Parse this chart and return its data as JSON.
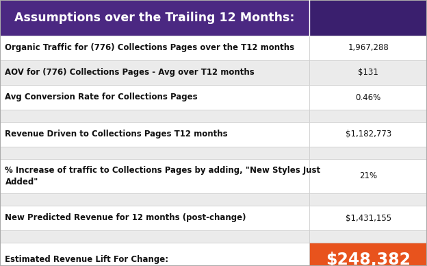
{
  "title": "Assumptions over the Trailing 12 Months:",
  "title_bg": "#4B2882",
  "title_color": "#FFFFFF",
  "col_split": 0.725,
  "rows": [
    {
      "label": "Organic Traffic for (776) Collections Pages over the T12 months",
      "value": "1,967,288",
      "bold_label": true,
      "bold_value": false,
      "bg": "#FFFFFF",
      "value_bg": "#FFFFFF",
      "spacer": false,
      "large_value": false,
      "multiline": false
    },
    {
      "label": "AOV for (776) Collections Pages - Avg over T12 months",
      "value": "$131",
      "bold_label": true,
      "bold_value": false,
      "bg": "#EBEBEB",
      "value_bg": "#EBEBEB",
      "spacer": false,
      "large_value": false,
      "multiline": false
    },
    {
      "label": "Avg Conversion Rate for Collections Pages",
      "value": "0.46%",
      "bold_label": true,
      "bold_value": false,
      "bg": "#FFFFFF",
      "value_bg": "#FFFFFF",
      "spacer": false,
      "large_value": false,
      "multiline": false
    },
    {
      "label": "",
      "value": "",
      "bold_label": false,
      "bold_value": false,
      "bg": "#EBEBEB",
      "value_bg": "#EBEBEB",
      "spacer": true,
      "large_value": false,
      "multiline": false
    },
    {
      "label": "Revenue Driven to Collections Pages T12 months",
      "value": "$1,182,773",
      "bold_label": true,
      "bold_value": false,
      "bg": "#FFFFFF",
      "value_bg": "#FFFFFF",
      "spacer": false,
      "large_value": false,
      "multiline": false
    },
    {
      "label": "",
      "value": "",
      "bold_label": false,
      "bold_value": false,
      "bg": "#EBEBEB",
      "value_bg": "#EBEBEB",
      "spacer": true,
      "large_value": false,
      "multiline": false
    },
    {
      "label": "% Increase of traffic to Collections Pages by adding, \"New Styles Just\nAdded\"",
      "value": "21%",
      "bold_label": true,
      "bold_value": false,
      "bg": "#FFFFFF",
      "value_bg": "#FFFFFF",
      "spacer": false,
      "large_value": false,
      "multiline": true
    },
    {
      "label": "",
      "value": "",
      "bold_label": false,
      "bold_value": false,
      "bg": "#EBEBEB",
      "value_bg": "#EBEBEB",
      "spacer": true,
      "large_value": false,
      "multiline": false
    },
    {
      "label": "New Predicted Revenue for 12 months (post-change)",
      "value": "$1,431,155",
      "bold_label": true,
      "bold_value": false,
      "bg": "#FFFFFF",
      "value_bg": "#FFFFFF",
      "spacer": false,
      "large_value": false,
      "multiline": false
    },
    {
      "label": "",
      "value": "",
      "bold_label": false,
      "bold_value": false,
      "bg": "#EBEBEB",
      "value_bg": "#EBEBEB",
      "spacer": true,
      "large_value": false,
      "multiline": false
    },
    {
      "label": "Estimated Revenue Lift For Change:",
      "value": "$248,382",
      "bold_label": true,
      "bold_value": true,
      "bg": "#FFFFFF",
      "value_bg": "#E8531D",
      "spacer": false,
      "large_value": true,
      "multiline": false
    }
  ],
  "title_fontsize": 12.5,
  "label_fontsize": 8.5,
  "value_fontsize": 8.5,
  "large_value_fontsize": 17,
  "border_color": "#CCCCCC",
  "outer_border_color": "#AAAAAA",
  "fig_width": 6.24,
  "fig_height": 3.88,
  "dpi": 100
}
